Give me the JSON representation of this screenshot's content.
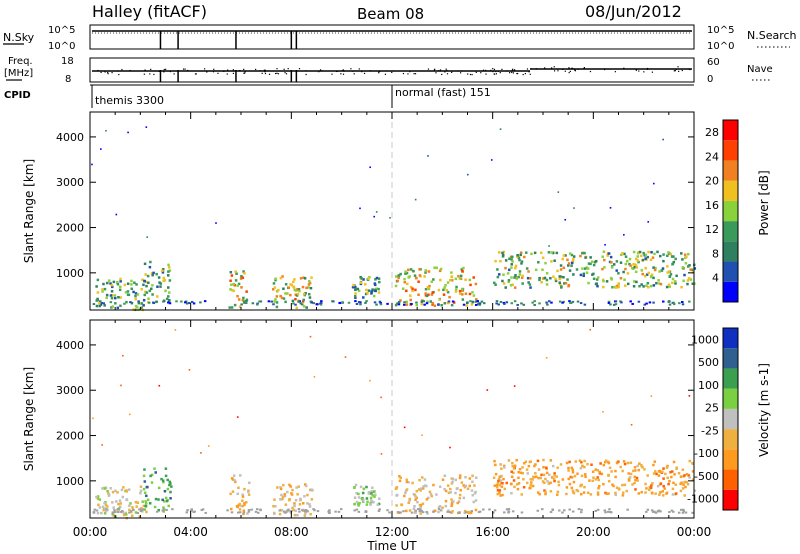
{
  "header": {
    "station": "Halley (fitACF)",
    "beam": "Beam 08",
    "date": "08/Jun/2012"
  },
  "colors": {
    "power_scale": [
      "#0000ff",
      "#2050b0",
      "#2f8060",
      "#3a9a5a",
      "#8ad23c",
      "#f0c020",
      "#f08020",
      "#ff4000",
      "#ff0000"
    ],
    "velocity_scale": [
      "#ff0000",
      "#ff6000",
      "#ff9a20",
      "#f0b040",
      "#c0c0c0",
      "#7ad040",
      "#3aa050",
      "#306090",
      "#1030c0"
    ],
    "ground_scatter": "#a0a0a0"
  },
  "top_panels": {
    "nsky": {
      "left_label": "N.Sky",
      "right_label": "N.Search",
      "left_ticks": [
        "10^5",
        "10^0"
      ],
      "right_ticks": [
        "10^5",
        "10^0"
      ]
    },
    "freq": {
      "left_label": "Freq.",
      "left_unit": "[MHz]",
      "right_label": "Nave",
      "left_ticks": [
        "18",
        "8"
      ],
      "right_ticks": [
        "60",
        "0"
      ]
    },
    "cpid": {
      "label": "CPID",
      "programs": [
        {
          "name": "themis 3300",
          "start": 0
        },
        {
          "name": "normal (fast) 151",
          "start": 12
        }
      ]
    },
    "dropout_hours": [
      2.8,
      3.5,
      5.8,
      8.0,
      8.2
    ]
  },
  "chart_data": [
    {
      "type": "heatmap",
      "ylabel": "Slant Range [km]",
      "xlabel": "Time UT",
      "xlim": [
        0,
        24
      ],
      "ylim": [
        180,
        4550
      ],
      "x_ticks": [
        "00:00",
        "04:00",
        "08:00",
        "12:00",
        "16:00",
        "20:00",
        "00:00"
      ],
      "y_ticks": [
        1000,
        2000,
        3000,
        4000
      ],
      "colorbar": {
        "label": "Power [dB]",
        "ticks": [
          "4",
          "8",
          "12",
          "16",
          "20",
          "24",
          "28"
        ],
        "range": [
          0,
          30
        ]
      },
      "echo_regions": [
        {
          "t": [
            0.2,
            2.2
          ],
          "r": [
            200,
            900
          ],
          "level": 0.3
        },
        {
          "t": [
            2.0,
            3.2
          ],
          "r": [
            350,
            1300
          ],
          "level": 0.25
        },
        {
          "t": [
            5.5,
            6.3
          ],
          "r": [
            250,
            1150
          ],
          "level": 0.5
        },
        {
          "t": [
            7.2,
            8.8
          ],
          "r": [
            250,
            950
          ],
          "level": 0.45
        },
        {
          "t": [
            10.4,
            11.5
          ],
          "r": [
            450,
            950
          ],
          "level": 0.3
        },
        {
          "t": [
            12.1,
            15.3
          ],
          "r": [
            300,
            1150
          ],
          "level": 0.5
        },
        {
          "t": [
            16.0,
            24.0
          ],
          "r": [
            700,
            1500
          ],
          "level": 0.35
        }
      ]
    },
    {
      "type": "heatmap",
      "ylabel": "Slant Range [km]",
      "xlabel": "Time UT",
      "xlim": [
        0,
        24
      ],
      "ylim": [
        180,
        4550
      ],
      "x_ticks": [
        "00:00",
        "04:00",
        "08:00",
        "12:00",
        "16:00",
        "20:00",
        "00:00"
      ],
      "y_ticks": [
        1000,
        2000,
        3000,
        4000
      ],
      "colorbar": {
        "label": "Velocity [m s-1]",
        "ticks": [
          "1000",
          "500",
          "100",
          "25",
          "-25",
          "-100",
          "-500",
          "-1000"
        ],
        "range": [
          -1000,
          1000
        ]
      },
      "echo_regions": [
        {
          "t": [
            0.2,
            2.2
          ],
          "r": [
            200,
            900
          ],
          "level": -0.1
        },
        {
          "t": [
            2.0,
            3.2
          ],
          "r": [
            350,
            1300
          ],
          "level": 0.4
        },
        {
          "t": [
            5.5,
            6.3
          ],
          "r": [
            250,
            1150
          ],
          "level": -0.3
        },
        {
          "t": [
            7.2,
            8.8
          ],
          "r": [
            250,
            950
          ],
          "level": -0.2
        },
        {
          "t": [
            10.4,
            11.5
          ],
          "r": [
            450,
            950
          ],
          "level": 0.2
        },
        {
          "t": [
            12.1,
            15.3
          ],
          "r": [
            300,
            1150
          ],
          "level": -0.2
        },
        {
          "t": [
            16.0,
            24.0
          ],
          "r": [
            700,
            1500
          ],
          "level": -0.4
        }
      ]
    }
  ]
}
